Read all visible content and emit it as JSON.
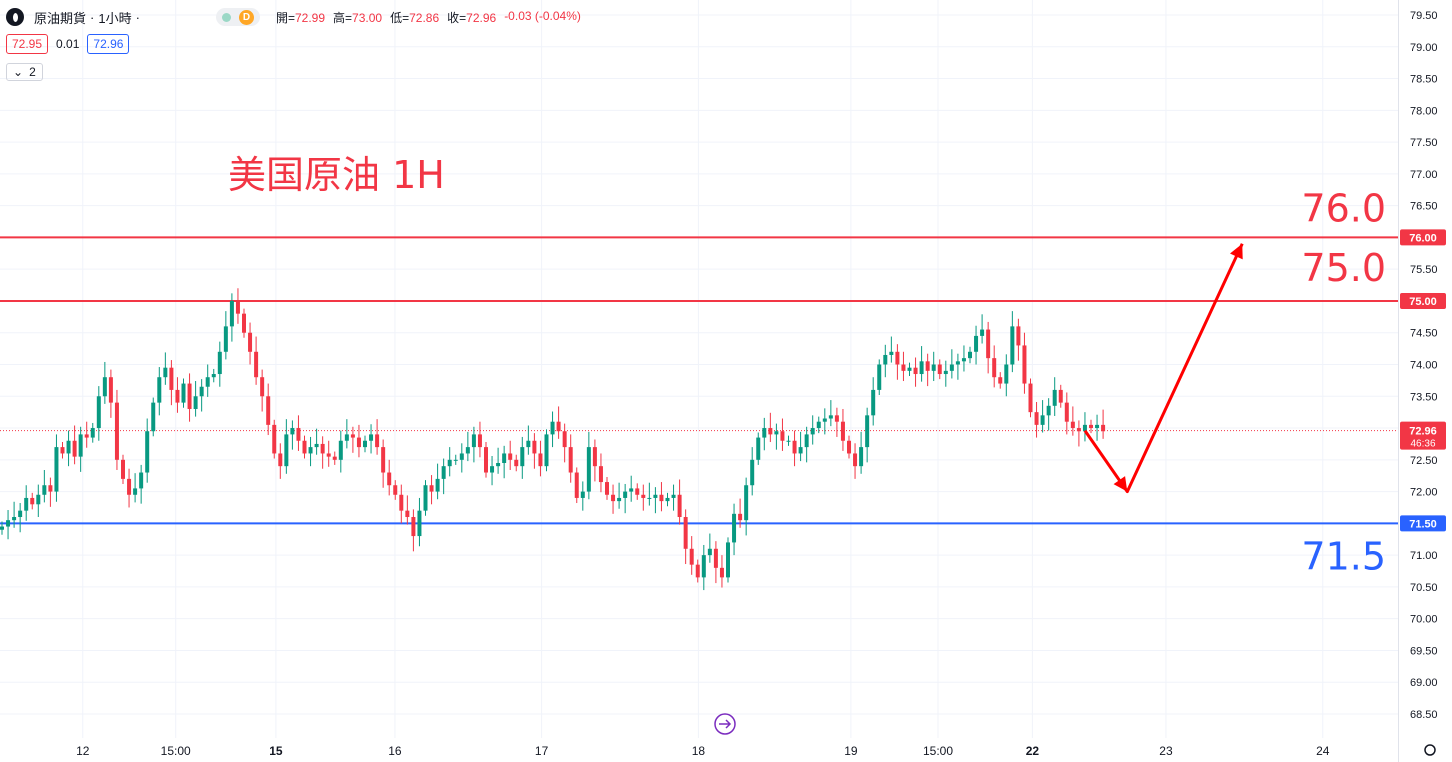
{
  "header": {
    "symbol": "原油期貨",
    "interval": "1小時",
    "market_status": "D",
    "ohlc": [
      {
        "key": "開",
        "value": "72.99"
      },
      {
        "key": "高",
        "value": "73.00"
      },
      {
        "key": "低",
        "value": "72.86"
      },
      {
        "key": "收",
        "value": "72.96"
      }
    ],
    "change": "-0.03 (-0.04%)",
    "sell_price": "72.95",
    "spread": "0.01",
    "buy_price": "72.96",
    "indicators_count": "2"
  },
  "colors": {
    "up": "#089981",
    "down": "#f23645",
    "resistance": "#f23645",
    "support": "#2962ff",
    "annotation": "#f23645"
  },
  "chart_data": {
    "type": "candlestick",
    "title": "美国原油 1H",
    "ylim": [
      68.5,
      79.5
    ],
    "y_ticks": [
      "68.50",
      "69.00",
      "69.50",
      "70.00",
      "70.50",
      "71.00",
      "71.50",
      "72.00",
      "72.50",
      "73.00",
      "73.50",
      "74.00",
      "74.50",
      "75.00",
      "75.50",
      "76.00",
      "76.50",
      "77.00",
      "77.50",
      "78.00",
      "78.50",
      "79.00",
      "79.50"
    ],
    "x_labels": [
      {
        "label": "12",
        "bold": false,
        "x_frac": 0.057
      },
      {
        "label": "15:00",
        "bold": false,
        "x_frac": 0.121
      },
      {
        "label": "15",
        "bold": true,
        "x_frac": 0.19
      },
      {
        "label": "16",
        "bold": false,
        "x_frac": 0.272
      },
      {
        "label": "17",
        "bold": false,
        "x_frac": 0.373
      },
      {
        "label": "18",
        "bold": false,
        "x_frac": 0.481
      },
      {
        "label": "19",
        "bold": false,
        "x_frac": 0.586
      },
      {
        "label": "15:00",
        "bold": false,
        "x_frac": 0.646
      },
      {
        "label": "22",
        "bold": true,
        "x_frac": 0.711
      },
      {
        "label": "23",
        "bold": false,
        "x_frac": 0.803
      },
      {
        "label": "24",
        "bold": false,
        "x_frac": 0.911
      }
    ],
    "candles_close": [
      71.45,
      71.55,
      71.6,
      71.7,
      71.9,
      71.8,
      71.95,
      72.1,
      72.0,
      72.7,
      72.6,
      72.8,
      72.55,
      72.9,
      72.85,
      73.0,
      73.5,
      73.8,
      73.4,
      72.5,
      72.2,
      71.95,
      72.05,
      72.3,
      72.95,
      73.4,
      73.8,
      73.95,
      73.6,
      73.4,
      73.7,
      73.3,
      73.5,
      73.65,
      73.8,
      73.85,
      74.2,
      74.6,
      75.0,
      74.8,
      74.5,
      74.2,
      73.8,
      73.5,
      73.05,
      72.6,
      72.4,
      72.9,
      73.0,
      72.8,
      72.6,
      72.7,
      72.75,
      72.6,
      72.55,
      72.5,
      72.8,
      72.9,
      72.85,
      72.7,
      72.8,
      72.9,
      72.7,
      72.3,
      72.1,
      71.95,
      71.7,
      71.6,
      71.3,
      71.7,
      72.1,
      72.0,
      72.2,
      72.4,
      72.5,
      72.5,
      72.6,
      72.7,
      72.9,
      72.7,
      72.3,
      72.4,
      72.45,
      72.6,
      72.5,
      72.4,
      72.7,
      72.8,
      72.6,
      72.4,
      72.9,
      73.1,
      72.95,
      72.7,
      72.3,
      71.9,
      72.0,
      72.7,
      72.4,
      72.15,
      71.95,
      71.85,
      71.9,
      72.0,
      72.05,
      71.95,
      71.9,
      71.9,
      71.95,
      71.85,
      71.9,
      71.95,
      71.6,
      71.1,
      70.85,
      70.65,
      71.0,
      71.1,
      70.8,
      70.65,
      71.2,
      71.65,
      71.55,
      72.1,
      72.5,
      72.85,
      73.0,
      72.9,
      72.95,
      72.8,
      72.8,
      72.6,
      72.7,
      72.9,
      73.0,
      73.1,
      73.15,
      73.2,
      73.1,
      72.8,
      72.6,
      72.4,
      72.7,
      73.2,
      73.6,
      74.0,
      74.15,
      74.2,
      74.0,
      73.9,
      73.95,
      73.85,
      74.05,
      73.9,
      74.0,
      73.85,
      73.9,
      74.0,
      74.05,
      74.1,
      74.2,
      74.45,
      74.55,
      74.1,
      73.8,
      73.7,
      74.0,
      74.6,
      74.3,
      73.7,
      73.25,
      73.05,
      73.2,
      73.35,
      73.6,
      73.4,
      73.1,
      73.0,
      72.95,
      73.05,
      73.0,
      73.05,
      72.95
    ]
  },
  "lines": {
    "resistance_1": {
      "value": 76.0,
      "label": "76.00",
      "annotation": "76.0"
    },
    "resistance_2": {
      "value": 75.0,
      "label": "75.00",
      "annotation": "75.0"
    },
    "support": {
      "value": 71.5,
      "label": "71.50",
      "annotation": "71.5"
    },
    "current": {
      "value": 72.96,
      "label": "72.96",
      "countdown": "46:36"
    }
  },
  "forecast_path": [
    {
      "bar": 179,
      "price": 72.96
    },
    {
      "bar": 186,
      "price": 72.0
    },
    {
      "bar": 205,
      "price": 75.9
    }
  ]
}
